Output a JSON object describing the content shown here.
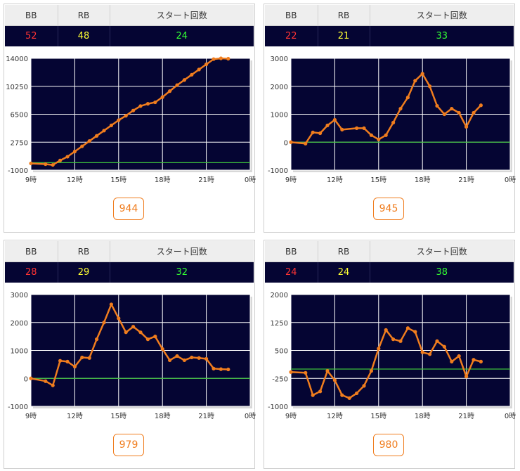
{
  "headers": {
    "bb": "BB",
    "rb": "RB",
    "start": "スタート回数"
  },
  "colors": {
    "bb": "#ff3333",
    "rb": "#ffff33",
    "start": "#33ff33",
    "plot_bg": "#050533",
    "line": "#f07d1e",
    "zero": "#3cc03c"
  },
  "panels": [
    {
      "bb": "52",
      "rb": "48",
      "start": "24",
      "machine": "944",
      "chart_data": {
        "type": "line",
        "x_tick_labels": [
          "9時",
          "12時",
          "15時",
          "18時",
          "21時",
          "0時"
        ],
        "y_tick_labels": [
          "14000",
          "10250",
          "6500",
          "2750",
          "-1000"
        ],
        "ylim": [
          -1000,
          14000
        ],
        "xlim": [
          9,
          24
        ],
        "grid": true,
        "x": [
          9,
          10,
          10.5,
          11,
          11.5,
          12,
          12.5,
          13,
          13.5,
          14,
          14.5,
          15,
          15.5,
          16,
          16.5,
          17,
          17.5,
          18,
          18.5,
          19,
          19.5,
          20,
          20.5,
          21,
          21.5,
          22,
          22.5
        ],
        "values": [
          -100,
          -200,
          -300,
          300,
          800,
          1500,
          2200,
          2900,
          3600,
          4300,
          5000,
          5700,
          6300,
          7000,
          7600,
          7900,
          8100,
          8800,
          9600,
          10400,
          11100,
          11800,
          12500,
          13200,
          13900,
          14000,
          13950
        ]
      }
    },
    {
      "bb": "22",
      "rb": "21",
      "start": "33",
      "machine": "945",
      "chart_data": {
        "type": "line",
        "x_tick_labels": [
          "9時",
          "12時",
          "15時",
          "18時",
          "21時",
          "0時"
        ],
        "y_tick_labels": [
          "3000",
          "2000",
          "1000",
          "0",
          "-1000"
        ],
        "ylim": [
          -1000,
          3000
        ],
        "xlim": [
          9,
          24
        ],
        "grid": true,
        "x": [
          9,
          10,
          10.5,
          11,
          11.5,
          12,
          12.5,
          13.5,
          14,
          14.5,
          15,
          15.5,
          16,
          16.5,
          17,
          17.5,
          18,
          18.5,
          19,
          19.5,
          20,
          20.5,
          21,
          21.5,
          22
        ],
        "values": [
          0,
          -50,
          350,
          320,
          600,
          800,
          450,
          500,
          500,
          250,
          100,
          250,
          700,
          1200,
          1600,
          2200,
          2450,
          2000,
          1300,
          1000,
          1200,
          1050,
          550,
          1050,
          1320
        ]
      }
    },
    {
      "bb": "28",
      "rb": "29",
      "start": "32",
      "machine": "979",
      "chart_data": {
        "type": "line",
        "x_tick_labels": [
          "9時",
          "12時",
          "15時",
          "18時",
          "21時",
          "0時"
        ],
        "y_tick_labels": [
          "3000",
          "2000",
          "1000",
          "0",
          "-1000"
        ],
        "ylim": [
          -1000,
          3000
        ],
        "xlim": [
          9,
          24
        ],
        "grid": true,
        "x": [
          9,
          10,
          10.5,
          11,
          11.5,
          12,
          12.5,
          13,
          13.5,
          14,
          14.5,
          15,
          15.5,
          16,
          16.5,
          17,
          17.5,
          18,
          18.5,
          19,
          19.5,
          20,
          20.5,
          21,
          21.5,
          22,
          22.5
        ],
        "values": [
          0,
          -100,
          -250,
          630,
          600,
          420,
          750,
          730,
          1400,
          2000,
          2650,
          2150,
          1650,
          1850,
          1650,
          1400,
          1500,
          1050,
          650,
          800,
          650,
          750,
          730,
          700,
          350,
          330,
          320
        ]
      }
    },
    {
      "bb": "24",
      "rb": "24",
      "start": "38",
      "machine": "980",
      "chart_data": {
        "type": "line",
        "x_tick_labels": [
          "9時",
          "12時",
          "15時",
          "18時",
          "21時",
          "0時"
        ],
        "y_tick_labels": [
          "2000",
          "1250",
          "500",
          "-250",
          "-1000"
        ],
        "ylim": [
          -1000,
          2000
        ],
        "xlim": [
          9,
          24
        ],
        "grid": true,
        "x": [
          9,
          10,
          10.5,
          11,
          11.5,
          12,
          12.5,
          13,
          13.5,
          14,
          14.5,
          15,
          15.5,
          16,
          16.5,
          17,
          17.5,
          18,
          18.5,
          19,
          19.5,
          20,
          20.5,
          21,
          21.5,
          22
        ],
        "values": [
          -80,
          -100,
          -700,
          -600,
          -50,
          -300,
          -700,
          -780,
          -650,
          -450,
          -50,
          550,
          1050,
          800,
          750,
          1100,
          1000,
          450,
          400,
          750,
          600,
          200,
          350,
          -200,
          250,
          200
        ]
      }
    }
  ]
}
